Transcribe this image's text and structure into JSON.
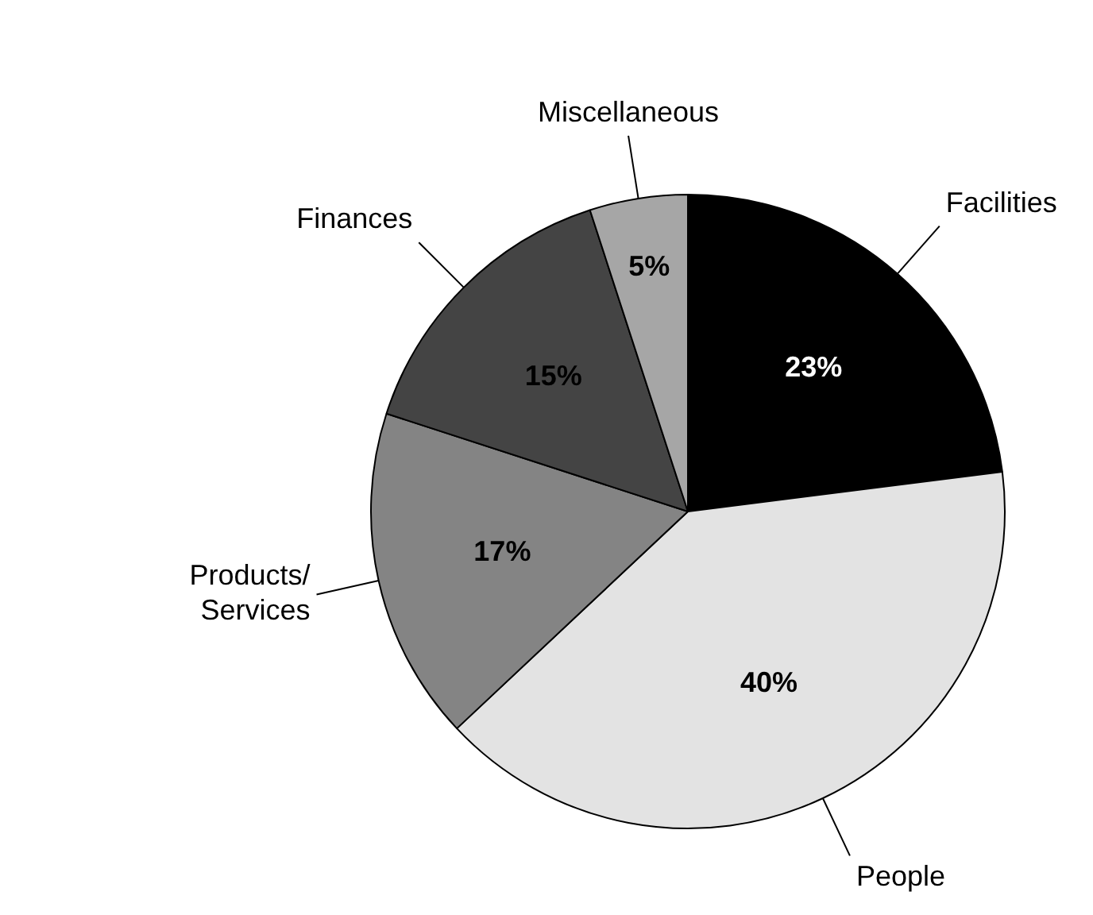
{
  "chart_data": {
    "type": "pie",
    "categories": [
      "Facilities",
      "People",
      "Products/ Services",
      "Finances",
      "Miscellaneous"
    ],
    "values": [
      23,
      40,
      17,
      15,
      5
    ],
    "colors": [
      "#000000",
      "#e3e3e3",
      "#848484",
      "#444444",
      "#a6a6a6"
    ],
    "value_labels": [
      "23%",
      "40%",
      "17%",
      "15%",
      "5%"
    ],
    "legend": false
  }
}
